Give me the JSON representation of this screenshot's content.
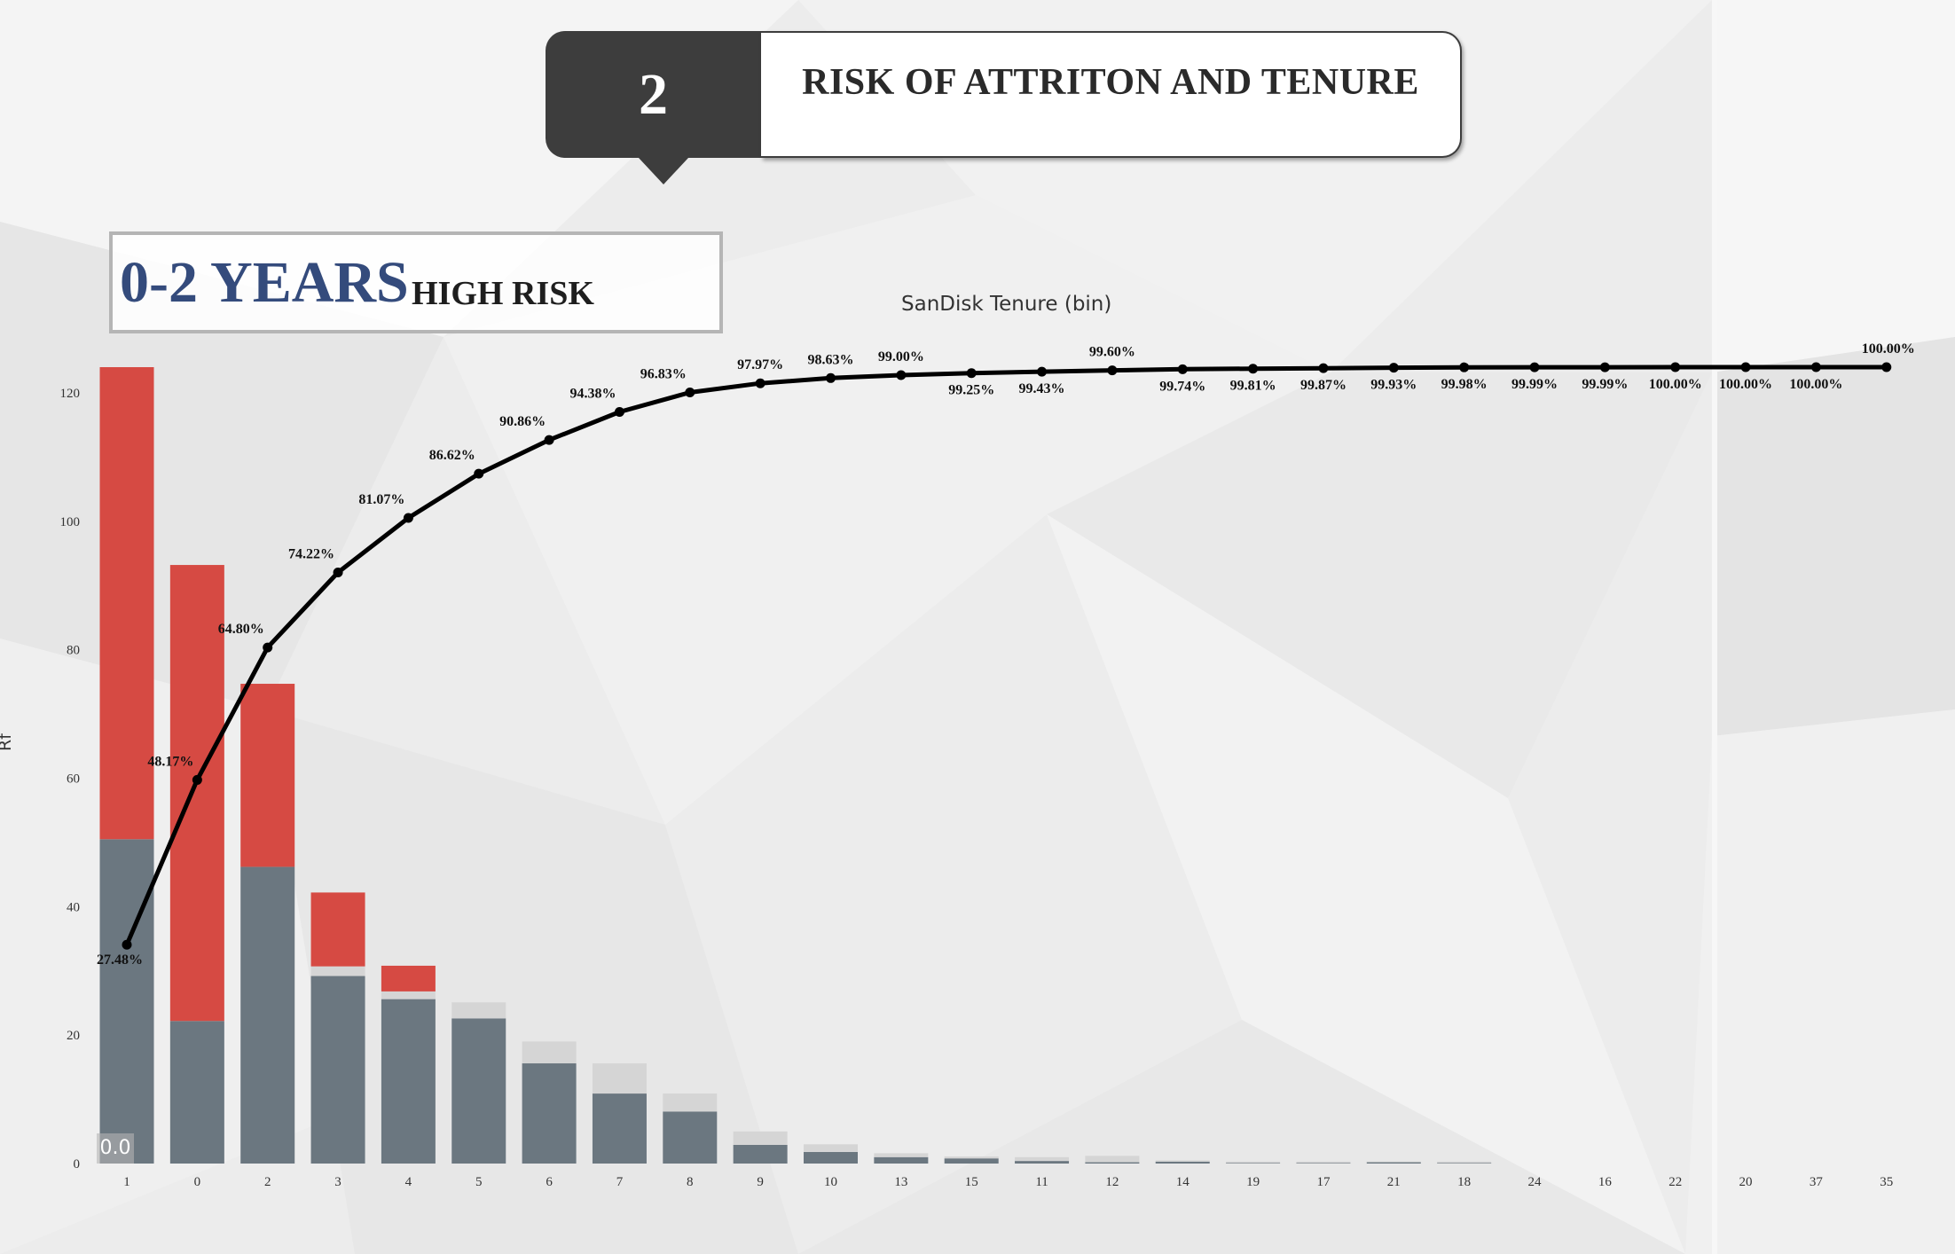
{
  "banner": {
    "number": "2",
    "title": "RISK OF ATTRITON AND TENURE"
  },
  "risk_box": {
    "years": "0-2 YEARS",
    "label": "HIGH RISK"
  },
  "chart_title": "SanDisk Tenure (bin)",
  "y_axis_label": "Rf",
  "zero_badge": "0.0",
  "colors": {
    "gray": "#6b7780",
    "red": "#d64a43",
    "light": "#d5d5d5",
    "line": "#000000"
  },
  "chart_data": {
    "type": "bar",
    "title": "SanDisk Tenure (bin)",
    "xlabel": "",
    "ylabel": "Rf",
    "ylim": [
      0,
      124
    ],
    "yticks": [
      0,
      20,
      40,
      60,
      80,
      100,
      120
    ],
    "categories": [
      "1",
      "0",
      "2",
      "3",
      "4",
      "5",
      "6",
      "7",
      "8",
      "9",
      "10",
      "13",
      "15",
      "11",
      "12",
      "14",
      "19",
      "17",
      "21",
      "18",
      "24",
      "16",
      "22",
      "20",
      "37",
      "35"
    ],
    "series": [
      {
        "values": [
          50.5,
          22.2,
          46.2,
          29.2,
          25.6,
          22.6,
          15.6,
          10.9,
          8.1,
          2.9,
          1.8,
          1.0,
          0.8,
          0.4,
          0.2,
          0.3,
          0.1,
          0.1,
          0.2,
          0.1,
          0,
          0,
          0,
          0,
          0,
          0
        ]
      },
      {
        "values": [
          0,
          0,
          0,
          1.5,
          1.2,
          2.5,
          3.4,
          4.7,
          2.8,
          2.1,
          1.2,
          0.6,
          0.3,
          0.6,
          1.0,
          0.2,
          0.2,
          0.2,
          0.1,
          0.2,
          0,
          0,
          0,
          0,
          0,
          0
        ]
      },
      {
        "values": [
          73.5,
          71.0,
          28.5,
          11.5,
          4.0,
          0,
          0,
          0,
          0,
          0,
          0,
          0,
          0,
          0,
          0,
          0,
          0,
          0,
          0,
          0,
          0,
          0,
          0,
          0,
          0,
          0
        ]
      }
    ],
    "cumulative_percent_labels": [
      "27.48%",
      "48.17%",
      "64.80%",
      "74.22%",
      "81.07%",
      "86.62%",
      "90.86%",
      "94.38%",
      "96.83%",
      "97.97%",
      "98.63%",
      "99.00%",
      "99.25%",
      "99.43%",
      "99.60%",
      "99.74%",
      "99.81%",
      "99.87%",
      "99.93%",
      "99.98%",
      "99.99%",
      "99.99%",
      "100.00%",
      "100.00%",
      "100.00%",
      "100.00%"
    ],
    "cumulative_percent": [
      27.48,
      48.17,
      64.8,
      74.22,
      81.07,
      86.62,
      90.86,
      94.38,
      96.83,
      97.97,
      98.63,
      99.0,
      99.25,
      99.43,
      99.6,
      99.74,
      99.81,
      99.87,
      99.93,
      99.98,
      99.99,
      99.99,
      100.0,
      100.0,
      100.0,
      100.0
    ],
    "grid": false,
    "legend": "none"
  }
}
